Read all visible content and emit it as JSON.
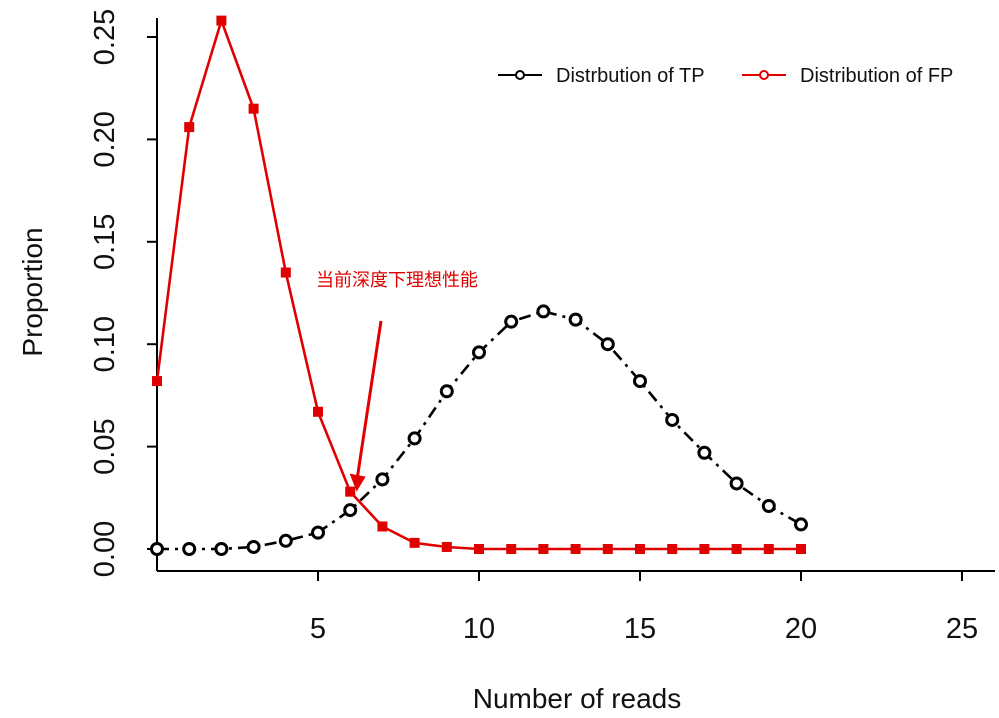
{
  "chart_data": {
    "type": "line",
    "xlabel": "Number of reads",
    "ylabel": "Proportion",
    "xlim": [
      0,
      25
    ],
    "ylim": [
      0,
      0.25
    ],
    "xticks": [
      5,
      10,
      15,
      20,
      25
    ],
    "yticks": [
      "0.00",
      "0.05",
      "0.10",
      "0.15",
      "0.20",
      "0.25"
    ],
    "legend_position": "top-right",
    "series": [
      {
        "name": "Distrbution of TP",
        "color": "#000000",
        "marker": "open-circle",
        "line": "dashdot",
        "x": [
          0,
          1,
          2,
          3,
          4,
          5,
          6,
          7,
          8,
          9,
          10,
          11,
          12,
          13,
          14,
          15,
          16,
          17,
          18,
          19,
          20
        ],
        "values": [
          0.0,
          0.0,
          0.0,
          0.001,
          0.004,
          0.008,
          0.019,
          0.034,
          0.054,
          0.077,
          0.096,
          0.111,
          0.116,
          0.112,
          0.1,
          0.082,
          0.063,
          0.047,
          0.032,
          0.021,
          0.012
        ]
      },
      {
        "name": "Distribution of FP",
        "color": "#e00000",
        "marker": "filled-square",
        "line": "solid",
        "x": [
          0,
          1,
          2,
          3,
          4,
          5,
          6,
          7,
          8,
          9,
          10,
          11,
          12,
          13,
          14,
          15,
          16,
          17,
          18,
          19,
          20
        ],
        "values": [
          0.082,
          0.206,
          0.258,
          0.215,
          0.135,
          0.067,
          0.028,
          0.011,
          0.003,
          0.001,
          0.0,
          0.0,
          0.0,
          0.0,
          0.0,
          0.0,
          0.0,
          0.0,
          0.0,
          0.0,
          0.0
        ]
      }
    ],
    "annotations": [
      {
        "text": "当前深度下理想性能",
        "color": "#e00000",
        "arrow_to": [
          6.2,
          0.028
        ]
      }
    ]
  }
}
